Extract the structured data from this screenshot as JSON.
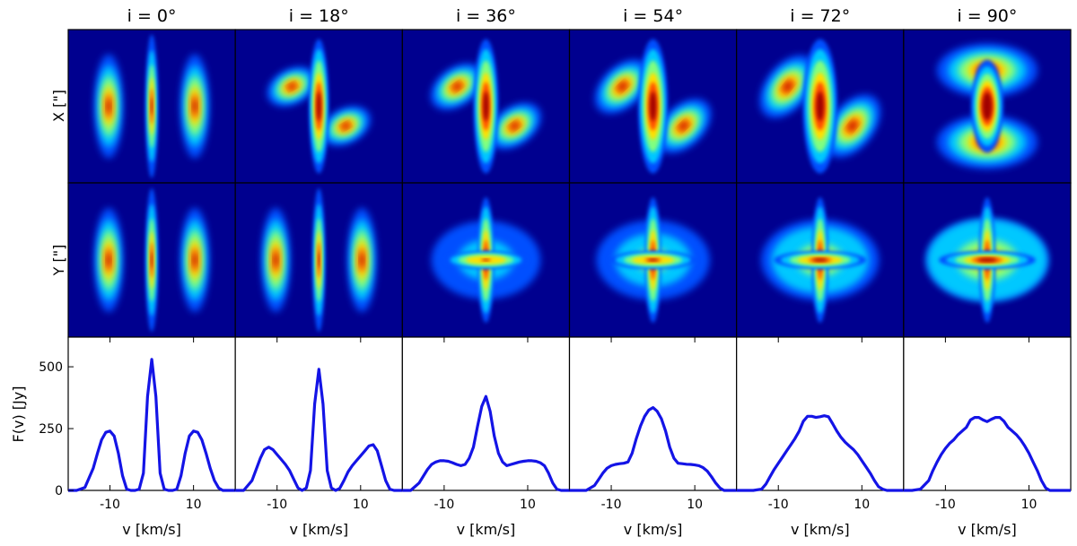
{
  "columns": [
    {
      "title": "i = 0°"
    },
    {
      "title": "i = 18°"
    },
    {
      "title": "i = 36°"
    },
    {
      "title": "i = 54°"
    },
    {
      "title": "i = 72°"
    },
    {
      "title": "i = 90°"
    }
  ],
  "row_labels": {
    "map_x": "X [\"]",
    "map_y": "Y [\"]",
    "spectrum": "F(v) [Jy]"
  },
  "xlabel": "v [km/s]",
  "colors": {
    "map_background": "#00008f",
    "line": "#1414e6",
    "colormap": "jet"
  },
  "chart_data": {
    "type": "line",
    "panels": [
      "i = 0°",
      "i = 18°",
      "i = 36°",
      "i = 54°",
      "i = 72°",
      "i = 90°"
    ],
    "xlabel": "v [km/s]",
    "ylabel": "F(v) [Jy]",
    "xlim": [
      -20,
      20
    ],
    "ylim": [
      0,
      620
    ],
    "xticks": [
      -10,
      10
    ],
    "xtick_labels": [
      "-10",
      "10"
    ],
    "yticks": [
      0,
      250,
      500
    ],
    "ytick_labels": [
      "0",
      "250",
      "500"
    ],
    "x": [
      -20,
      -18,
      -16,
      -14,
      -13,
      -12,
      -11,
      -10,
      -9,
      -8,
      -7,
      -6,
      -5,
      -4,
      -3,
      -2,
      -1,
      0,
      1,
      2,
      3,
      4,
      5,
      6,
      7,
      8,
      9,
      10,
      11,
      12,
      13,
      14,
      15,
      16,
      17,
      18,
      20
    ],
    "series": [
      {
        "values": [
          0,
          0,
          12,
          90,
          150,
          205,
          235,
          240,
          220,
          150,
          60,
          5,
          0,
          0,
          5,
          70,
          380,
          530,
          380,
          70,
          5,
          0,
          0,
          5,
          60,
          150,
          220,
          240,
          235,
          205,
          150,
          90,
          40,
          10,
          0,
          0,
          0
        ]
      },
      {
        "values": [
          0,
          0,
          40,
          130,
          165,
          175,
          165,
          145,
          125,
          105,
          80,
          45,
          10,
          0,
          10,
          80,
          350,
          490,
          350,
          80,
          10,
          0,
          8,
          40,
          75,
          100,
          120,
          140,
          160,
          180,
          185,
          160,
          100,
          40,
          5,
          0,
          0
        ]
      },
      {
        "values": [
          0,
          0,
          30,
          85,
          105,
          115,
          120,
          120,
          118,
          112,
          105,
          100,
          105,
          130,
          175,
          260,
          340,
          380,
          320,
          220,
          150,
          115,
          100,
          105,
          110,
          115,
          118,
          120,
          120,
          118,
          112,
          100,
          70,
          30,
          5,
          0,
          0
        ]
      },
      {
        "values": [
          0,
          0,
          0,
          20,
          45,
          70,
          90,
          100,
          105,
          108,
          110,
          115,
          150,
          210,
          260,
          300,
          325,
          335,
          320,
          290,
          240,
          175,
          130,
          110,
          108,
          106,
          105,
          103,
          100,
          92,
          78,
          55,
          30,
          10,
          0,
          0,
          0
        ]
      },
      {
        "values": [
          0,
          0,
          0,
          5,
          25,
          55,
          85,
          110,
          135,
          160,
          185,
          210,
          240,
          280,
          300,
          300,
          295,
          298,
          302,
          298,
          270,
          240,
          215,
          195,
          180,
          165,
          145,
          120,
          95,
          70,
          40,
          15,
          5,
          0,
          0,
          0,
          0
        ]
      },
      {
        "values": [
          0,
          0,
          5,
          40,
          80,
          115,
          145,
          170,
          190,
          205,
          225,
          240,
          255,
          285,
          295,
          295,
          285,
          278,
          288,
          295,
          295,
          280,
          255,
          240,
          225,
          205,
          180,
          150,
          115,
          80,
          40,
          10,
          0,
          0,
          0,
          0,
          0
        ]
      }
    ]
  }
}
